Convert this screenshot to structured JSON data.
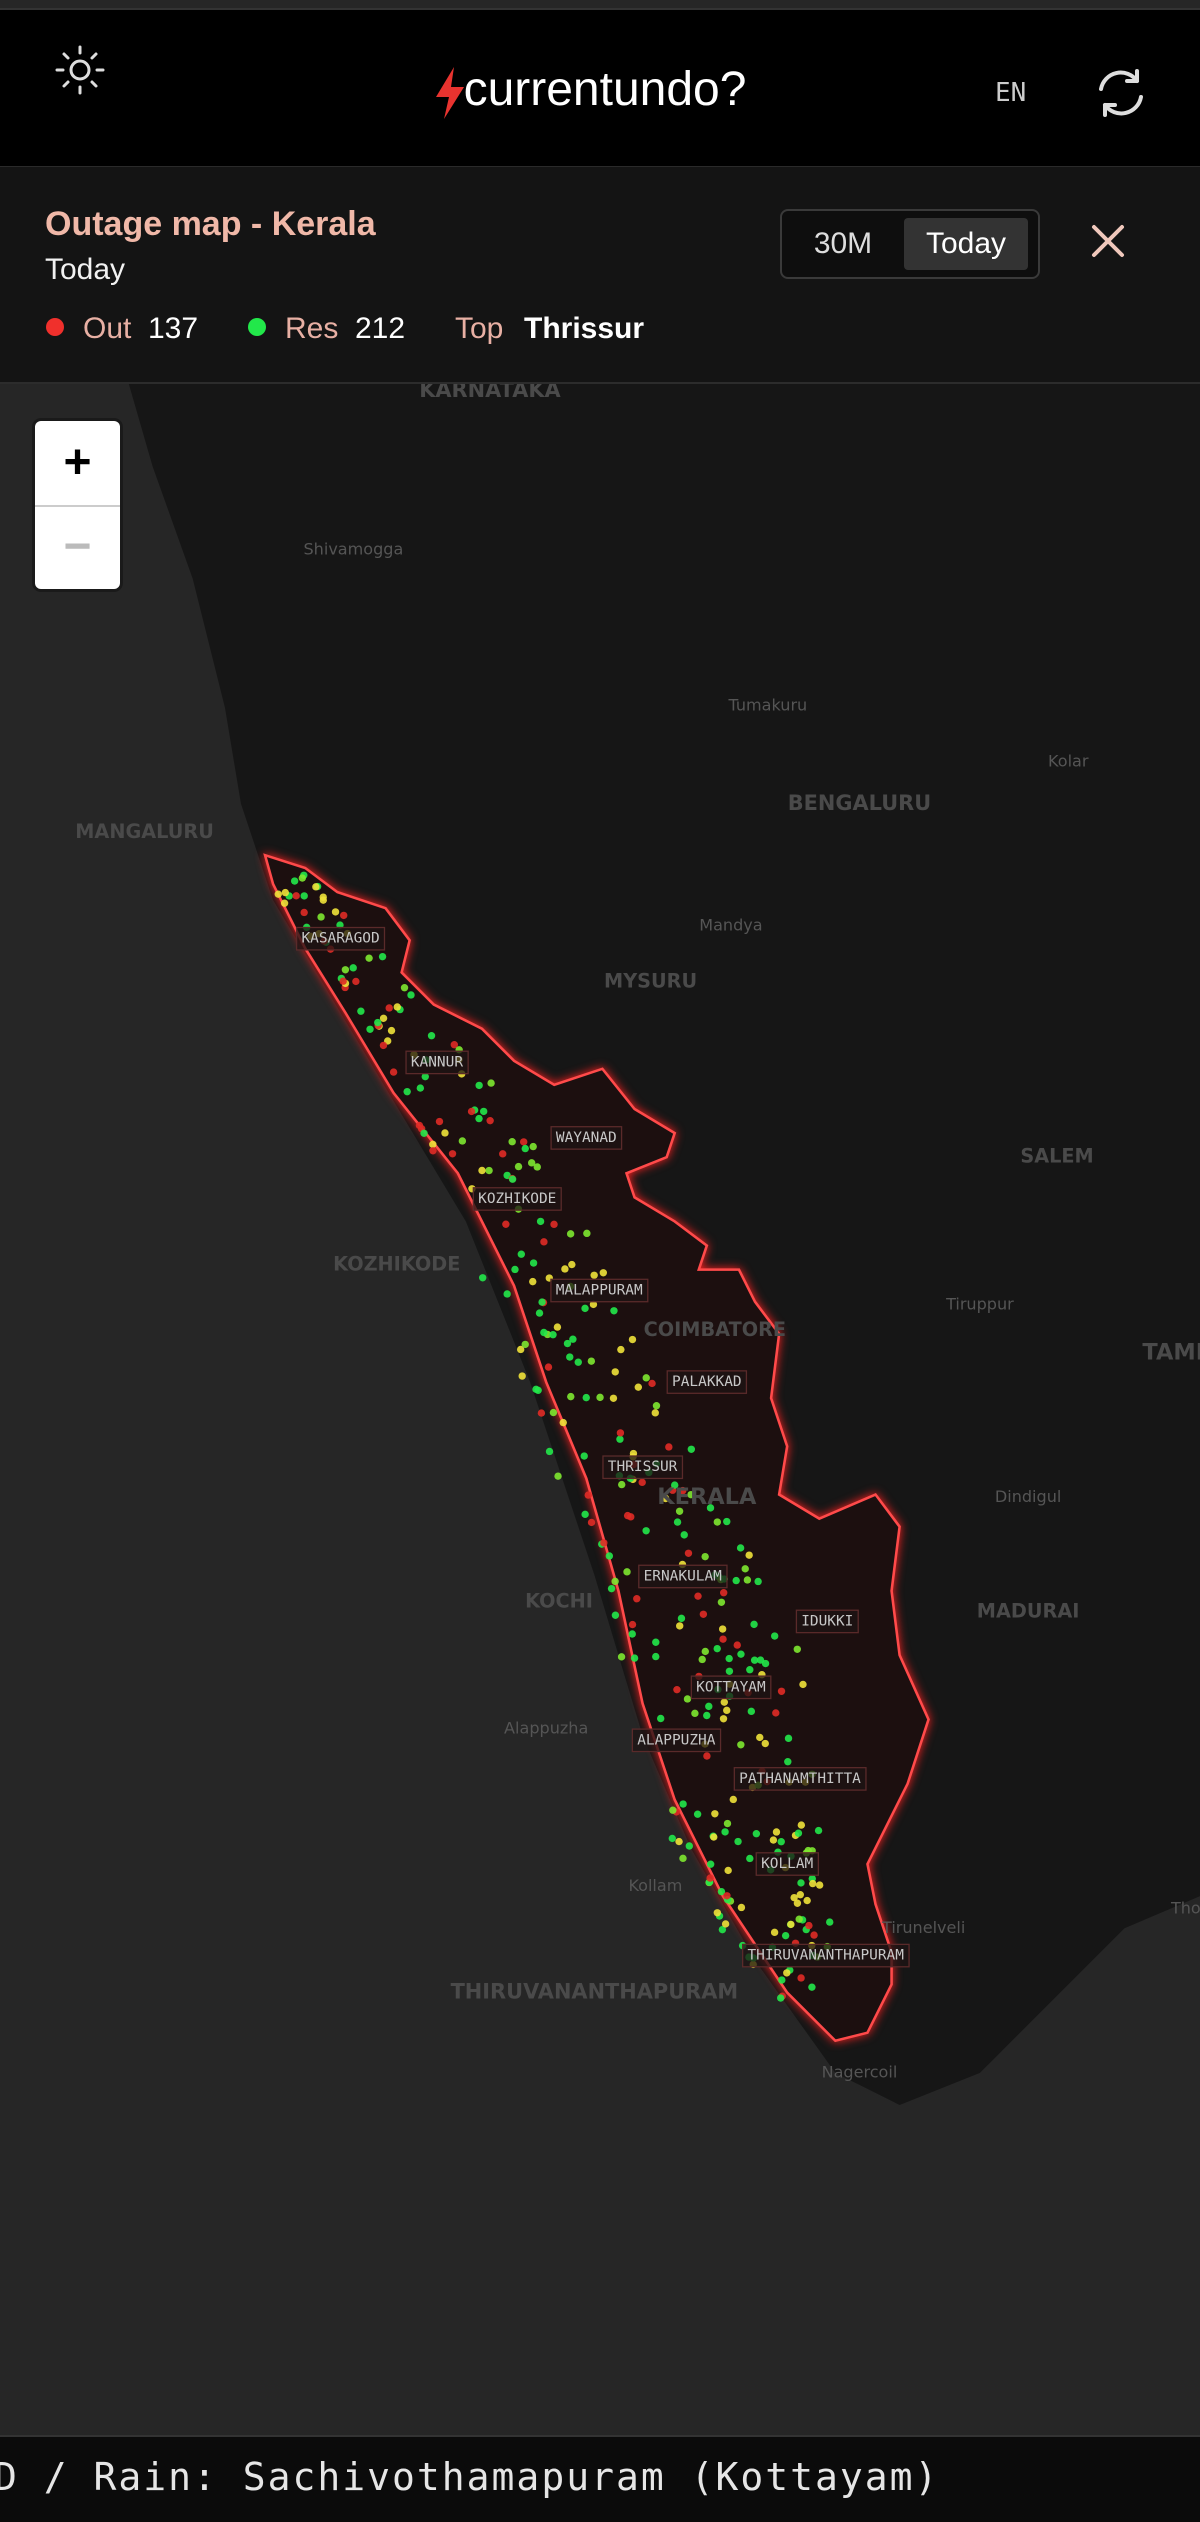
{
  "header": {
    "brand": "currentundo?",
    "language": "EN"
  },
  "panel": {
    "title": "Outage map - Kerala",
    "subtitle": "Today",
    "range_options": [
      "30M",
      "Today"
    ],
    "stats": [
      {
        "label": "Out",
        "value": 137
      },
      {
        "label": "Res",
        "value": 212
      },
      {
        "label": "Top",
        "value": "Thrissur"
      }
    ]
  },
  "map": {
    "zoom": [
      "+",
      "−"
    ],
    "places": [
      "KARNATAKA",
      "Shivamogga",
      "Tumakuru",
      "Kolar",
      "MANGALURU",
      "BENGALURU",
      "Mandya",
      "MYSURU",
      "SALEM",
      "KOZHIKODE",
      "Tiruppur",
      "COIMBATORE",
      "TAMIL NADU",
      "Dindigul",
      "KERALA",
      "KOCHI",
      "MADURAI",
      "Alappuzha",
      "Kollam",
      "Tirunelveli",
      "Thoothukudi",
      "THIRUVANANTHAPURAM",
      "Nagercoil"
    ],
    "districts": [
      "KASARAGOD",
      "KANNUR",
      "WAYANAD",
      "KOZHIKODE",
      "MALAPPURAM",
      "PALAKKAD",
      "THRISSUR",
      "ERNAKULAM",
      "IDUKKI",
      "KOTTAYAM",
      "ALAPPUZHA",
      "PATHANAMTHITTA",
      "KOLLAM",
      "THIRUVANANTHAPURAM"
    ]
  },
  "ticker": "D / Rain: Sachivothamapuram (Kottayam)"
}
